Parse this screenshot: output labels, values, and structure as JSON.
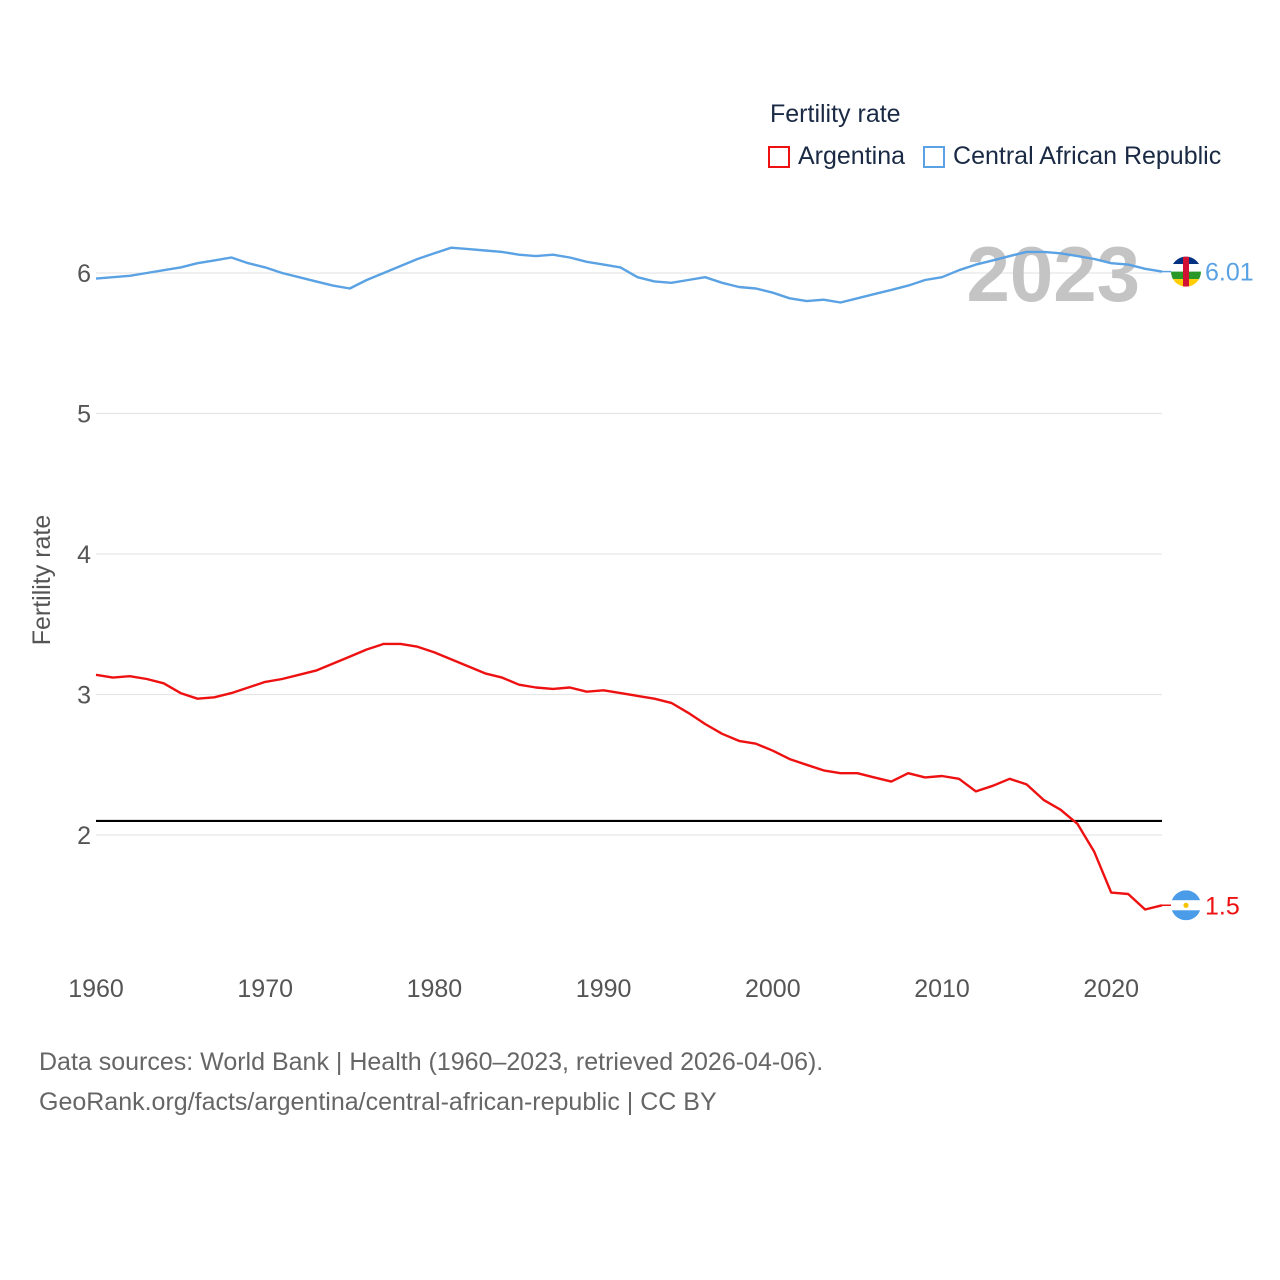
{
  "colors": {
    "argentina": "#ee1111",
    "car": "#5aa2e3",
    "grid": "#e6e6e6",
    "axis_text": "#555555",
    "year_text": "#c4c4c4",
    "reference": "#000000"
  },
  "legend": {
    "title": "Fertility rate",
    "items": [
      "Argentina",
      "Central African Republic"
    ]
  },
  "year_label": "2023",
  "footer": {
    "line1": "Data sources: World Bank | Health (1960–2023, retrieved 2026-04-06).",
    "line2": "GeoRank.org/facts/argentina/central-african-republic | CC BY"
  },
  "chart_data": {
    "type": "line",
    "title": "Fertility rate",
    "xlabel": "",
    "ylabel": "Fertility rate",
    "xlim": [
      1960,
      2023
    ],
    "ylim": [
      1.0,
      6.7
    ],
    "xticks": [
      1960,
      1970,
      1980,
      1990,
      2000,
      2010,
      2020
    ],
    "yticks": [
      2,
      3,
      4,
      5,
      6
    ],
    "grid": true,
    "legend_position": "top-right",
    "reference_line": 2.1,
    "x": [
      1960,
      1961,
      1962,
      1963,
      1964,
      1965,
      1966,
      1967,
      1968,
      1969,
      1970,
      1971,
      1972,
      1973,
      1974,
      1975,
      1976,
      1977,
      1978,
      1979,
      1980,
      1981,
      1982,
      1983,
      1984,
      1985,
      1986,
      1987,
      1988,
      1989,
      1990,
      1991,
      1992,
      1993,
      1994,
      1995,
      1996,
      1997,
      1998,
      1999,
      2000,
      2001,
      2002,
      2003,
      2004,
      2005,
      2006,
      2007,
      2008,
      2009,
      2010,
      2011,
      2012,
      2013,
      2014,
      2015,
      2016,
      2017,
      2018,
      2019,
      2020,
      2021,
      2022,
      2023
    ],
    "series": [
      {
        "name": "Argentina",
        "end_label": "1.5",
        "values": [
          3.14,
          3.12,
          3.13,
          3.11,
          3.08,
          3.01,
          2.97,
          2.98,
          3.01,
          3.05,
          3.09,
          3.11,
          3.14,
          3.17,
          3.22,
          3.27,
          3.32,
          3.36,
          3.36,
          3.34,
          3.3,
          3.25,
          3.2,
          3.15,
          3.12,
          3.07,
          3.05,
          3.04,
          3.05,
          3.02,
          3.03,
          3.01,
          2.99,
          2.97,
          2.94,
          2.87,
          2.79,
          2.72,
          2.67,
          2.65,
          2.6,
          2.54,
          2.5,
          2.46,
          2.44,
          2.44,
          2.41,
          2.38,
          2.44,
          2.41,
          2.42,
          2.4,
          2.31,
          2.35,
          2.4,
          2.36,
          2.25,
          2.18,
          2.08,
          1.88,
          1.59,
          1.58,
          1.47,
          1.5
        ]
      },
      {
        "name": "Central African Republic",
        "end_label": "6.01",
        "values": [
          5.96,
          5.97,
          5.98,
          6.0,
          6.02,
          6.04,
          6.07,
          6.09,
          6.11,
          6.07,
          6.04,
          6.0,
          5.97,
          5.94,
          5.91,
          5.89,
          5.95,
          6.0,
          6.05,
          6.1,
          6.14,
          6.18,
          6.17,
          6.16,
          6.15,
          6.13,
          6.12,
          6.13,
          6.11,
          6.08,
          6.06,
          6.04,
          5.97,
          5.94,
          5.93,
          5.95,
          5.97,
          5.93,
          5.9,
          5.89,
          5.86,
          5.82,
          5.8,
          5.81,
          5.79,
          5.82,
          5.85,
          5.88,
          5.91,
          5.95,
          5.97,
          6.02,
          6.06,
          6.09,
          6.12,
          6.15,
          6.15,
          6.14,
          6.12,
          6.1,
          6.07,
          6.06,
          6.03,
          6.01
        ]
      }
    ]
  }
}
